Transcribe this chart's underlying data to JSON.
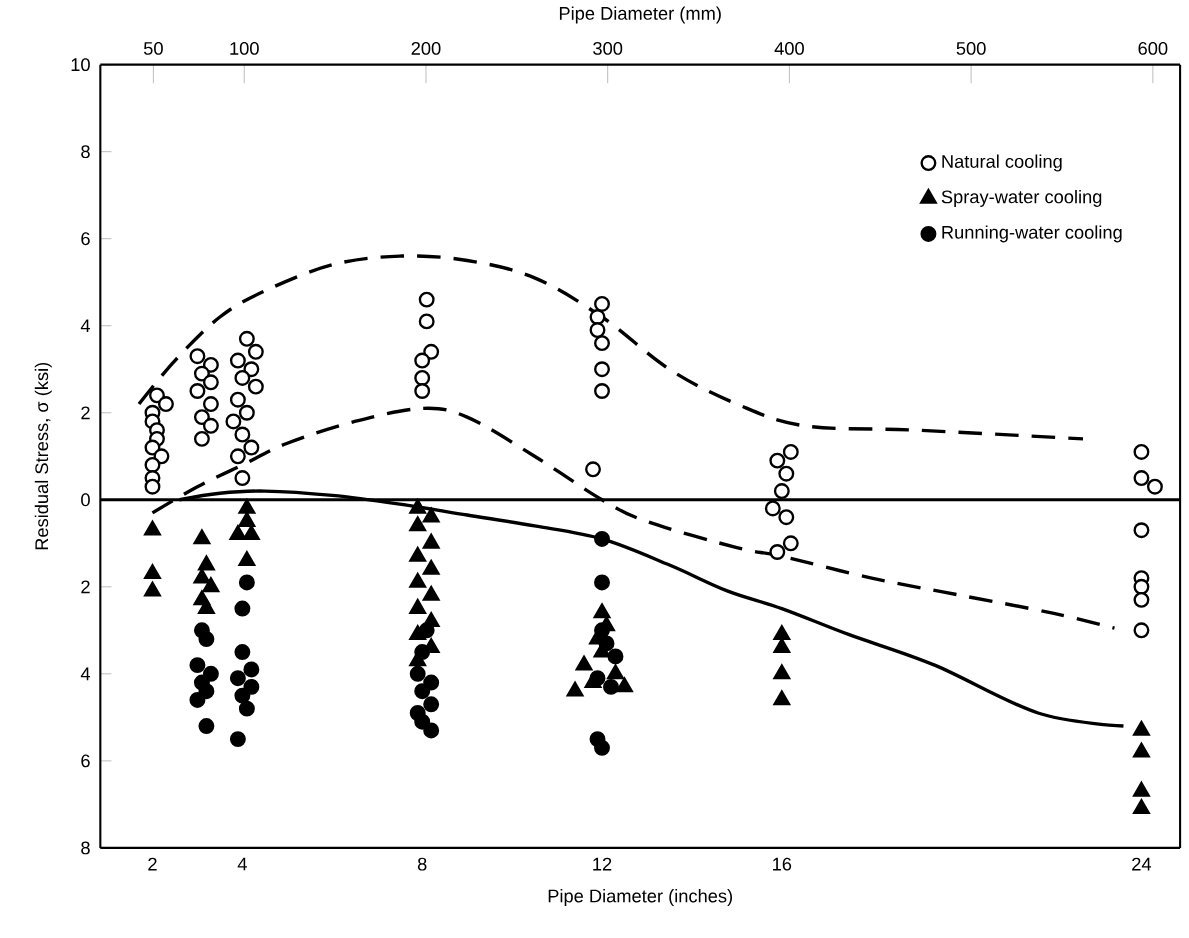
{
  "chart_data": {
    "type": "scatter",
    "xlabel": "Pipe Diameter (inches)",
    "x2label": "Pipe Diameter (mm)",
    "ylabel": "Residual Stress, σ (ksi)",
    "xlim": [
      0.84,
      24.86
    ],
    "xticks": [
      2,
      4,
      8,
      12,
      16,
      24
    ],
    "x2lim": [
      20.8,
      615
    ],
    "x2ticks": [
      50,
      100,
      200,
      300,
      400,
      500,
      600
    ],
    "ylim": [
      -8,
      10
    ],
    "yticks": [
      {
        "value": -8,
        "label": "8"
      },
      {
        "value": -6,
        "label": "6"
      },
      {
        "value": -4,
        "label": "4"
      },
      {
        "value": -2,
        "label": "2"
      },
      0,
      2,
      4,
      6,
      8,
      10
    ],
    "ref_lines": [
      {
        "axis": "y",
        "value": 0,
        "color": "#000000",
        "line_style": "solid"
      }
    ],
    "legend": "top right",
    "series": [
      {
        "name": "Natural cooling",
        "marker": "circle",
        "color": "#ffffff",
        "x": [
          2.1,
          2.3,
          2.0,
          2.0,
          2.1,
          2.1,
          2.0,
          2.2,
          2.0,
          2.0,
          2.0,
          3.0,
          3.3,
          3.1,
          3.3,
          3.0,
          3.3,
          3.1,
          3.3,
          3.1,
          4.1,
          4.3,
          3.9,
          4.2,
          4.0,
          4.3,
          3.9,
          4.1,
          3.8,
          4.0,
          4.2,
          3.9,
          4.0,
          8.1,
          8.1,
          8.2,
          8.0,
          8.0,
          8.0,
          12.0,
          11.9,
          11.9,
          12.0,
          12.0,
          12.0,
          11.8,
          16.2,
          15.9,
          16.1,
          16.0,
          15.8,
          16.1,
          16.2,
          15.9,
          24.0,
          24.0,
          24.3,
          24.0,
          24.0,
          24.0,
          24.0,
          24.0
        ],
        "values": [
          2.4,
          2.2,
          2.0,
          1.8,
          1.6,
          1.4,
          1.2,
          1.0,
          0.8,
          0.5,
          0.3,
          3.3,
          3.1,
          2.9,
          2.7,
          2.5,
          2.2,
          1.9,
          1.7,
          1.4,
          3.7,
          3.4,
          3.2,
          3.0,
          2.8,
          2.6,
          2.3,
          2.0,
          1.8,
          1.5,
          1.2,
          1.0,
          0.5,
          4.6,
          4.1,
          3.4,
          3.2,
          2.8,
          2.5,
          4.5,
          4.2,
          3.9,
          3.6,
          3.0,
          2.5,
          0.7,
          1.1,
          0.9,
          0.6,
          0.2,
          -0.2,
          -0.4,
          -1.0,
          -1.2,
          1.1,
          0.5,
          0.3,
          -0.7,
          -1.8,
          -2.0,
          -2.3,
          -3.0
        ]
      },
      {
        "name": "Spray-water cooling",
        "marker": "triangle",
        "color": "#000000",
        "x": [
          2.0,
          2.0,
          2.0,
          3.1,
          3.2,
          3.1,
          3.3,
          3.1,
          3.2,
          4.1,
          4.1,
          3.9,
          4.2,
          4.1,
          7.9,
          8.2,
          7.9,
          8.2,
          7.9,
          8.2,
          7.9,
          8.2,
          7.9,
          8.2,
          7.9,
          8.2,
          7.9,
          12.0,
          12.1,
          11.9,
          12.0,
          11.6,
          12.3,
          11.8,
          12.5,
          11.4,
          16.0,
          16.0,
          16.0,
          16.0,
          24.0,
          24.0,
          24.0,
          24.0
        ],
        "values": [
          -0.7,
          -1.7,
          -2.1,
          -0.9,
          -1.5,
          -1.8,
          -2.0,
          -2.3,
          -2.5,
          -0.2,
          -0.5,
          -0.8,
          -0.8,
          -1.4,
          -0.2,
          -0.4,
          -0.6,
          -1.0,
          -1.3,
          -1.6,
          -1.9,
          -2.2,
          -2.5,
          -2.8,
          -3.1,
          -3.4,
          -3.7,
          -2.6,
          -2.9,
          -3.2,
          -3.5,
          -3.8,
          -4.0,
          -4.2,
          -4.3,
          -4.4,
          -3.1,
          -3.4,
          -4.0,
          -4.6,
          -5.3,
          -5.8,
          -6.7,
          -7.1
        ]
      },
      {
        "name": "Running-water cooling",
        "marker": "circle",
        "color": "#000000",
        "x": [
          3.1,
          3.2,
          3.0,
          3.3,
          3.1,
          3.2,
          3.0,
          3.2,
          4.1,
          4.0,
          4.0,
          4.2,
          3.9,
          4.2,
          4.0,
          4.1,
          3.9,
          8.1,
          8.0,
          7.9,
          8.2,
          8.0,
          8.2,
          7.9,
          8.0,
          8.2,
          12.0,
          12.0,
          12.0,
          12.1,
          12.3,
          11.9,
          12.2,
          11.9,
          12.0
        ],
        "values": [
          -3.0,
          -3.2,
          -3.8,
          -4.0,
          -4.2,
          -4.4,
          -4.6,
          -5.2,
          -1.9,
          -2.5,
          -3.5,
          -3.9,
          -4.1,
          -4.3,
          -4.5,
          -4.8,
          -5.5,
          -3.0,
          -3.5,
          -4.0,
          -4.2,
          -4.4,
          -4.7,
          -4.9,
          -5.1,
          -5.3,
          -0.9,
          -1.9,
          -3.0,
          -3.3,
          -3.6,
          -4.1,
          -4.3,
          -5.5,
          -5.7
        ]
      },
      {
        "type": "line",
        "line_style": "dashed",
        "color": "#000000",
        "x": [
          1.7,
          2.5,
          3.5,
          4.5,
          6,
          7.5,
          9,
          10.5,
          12,
          13.5,
          15,
          16.5,
          19,
          22.7
        ],
        "values": [
          2.2,
          3.2,
          4.2,
          4.8,
          5.4,
          5.6,
          5.5,
          5.1,
          4.2,
          3.0,
          2.2,
          1.7,
          1.6,
          1.4
        ]
      },
      {
        "type": "line",
        "line_style": "dashed",
        "color": "#000000",
        "x": [
          2,
          3,
          4,
          5,
          6.5,
          8,
          9,
          10.5,
          12,
          13,
          15,
          16,
          18,
          20,
          22,
          23.4
        ],
        "values": [
          -0.3,
          0.3,
          0.8,
          1.3,
          1.8,
          2.1,
          1.9,
          1.0,
          0.0,
          -0.5,
          -1.1,
          -1.3,
          -1.8,
          -2.2,
          -2.6,
          -2.95
        ]
      },
      {
        "type": "line",
        "line_style": "solid",
        "color": "#000000",
        "x": [
          2.6,
          3.5,
          4.5,
          6,
          7.5,
          9,
          10.5,
          12,
          13.5,
          14.8,
          16,
          17.5,
          19.4,
          21.7,
          23.6
        ],
        "values": [
          0,
          0.15,
          0.2,
          0.1,
          -0.1,
          -0.35,
          -0.6,
          -0.9,
          -1.5,
          -2.1,
          -2.5,
          -3.1,
          -3.8,
          -4.9,
          -5.2
        ]
      }
    ]
  }
}
